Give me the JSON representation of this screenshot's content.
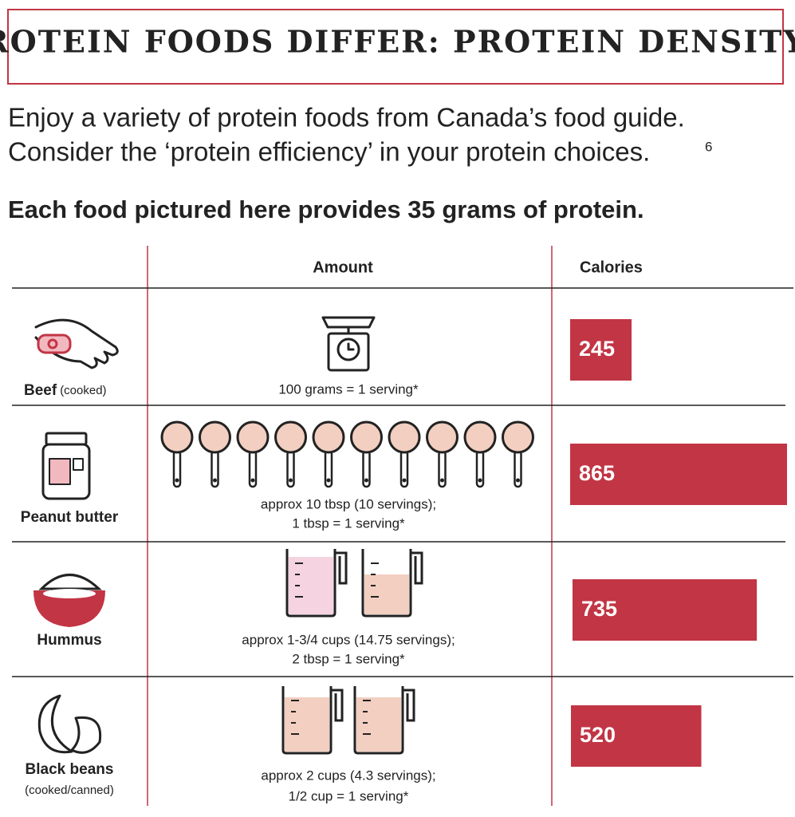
{
  "header": {
    "title": "PROTEIN FOODS DIFFER: PROTEIN DENSITY"
  },
  "intro": {
    "lines": [
      "Enjoy a variety of protein foods from Canada’s food guide.",
      "Consider the ‘protein efficiency’ in your protein choices."
    ],
    "footnote": "6"
  },
  "subtitle": "Each food pictured here provides 35 grams of protein.",
  "table": {
    "columns": [
      "Amount",
      "Calories"
    ],
    "rows": [
      {
        "food": "Beef",
        "note": "(cooked)",
        "amount": [
          "100 grams = 1 serving*"
        ],
        "calories": 245
      },
      {
        "food": "Peanut butter",
        "amount": [
          "approx 10 tbsp (10 servings);",
          "1 tbsp = 1 serving*"
        ],
        "calories": 865
      },
      {
        "food": "Hummus",
        "amount": [
          "approx 1-3/4 cups (14.75 servings);",
          "2 tbsp = 1 serving*"
        ],
        "calories": 735
      },
      {
        "food": "Black beans",
        "note": "(cooked/canned)",
        "amount": [
          "approx 2 cups (4.3 servings);",
          "1/2 cup = 1 serving*"
        ],
        "calories": 520
      }
    ]
  },
  "bar_color": "#c23545"
}
